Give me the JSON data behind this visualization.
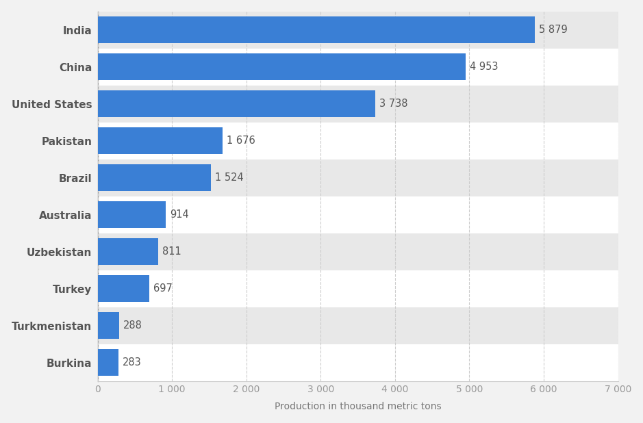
{
  "countries": [
    "Burkina",
    "Turkmenistan",
    "Turkey",
    "Uzbekistan",
    "Australia",
    "Brazil",
    "Pakistan",
    "United States",
    "China",
    "India"
  ],
  "values": [
    283,
    288,
    697,
    811,
    914,
    1524,
    1676,
    3738,
    4953,
    5879
  ],
  "labels": [
    "283",
    "288",
    "697",
    "811",
    "914",
    "1 524",
    "1 676",
    "3 738",
    "4 953",
    "5 879"
  ],
  "bar_color": "#3a7fd5",
  "background_color": "#f2f2f2",
  "plot_bg_color": "#ffffff",
  "row_alt_color": "#e8e8e8",
  "xlabel": "Production in thousand metric tons",
  "xlim": [
    0,
    7000
  ],
  "xticks": [
    0,
    1000,
    2000,
    3000,
    4000,
    5000,
    6000,
    7000
  ],
  "xtick_labels": [
    "0",
    "1 000",
    "2 000",
    "3 000",
    "4 000",
    "5 000",
    "6 000",
    "7 000"
  ],
  "label_color": "#555555",
  "tick_color": "#999999",
  "xlabel_color": "#777777",
  "bar_height": 0.72,
  "label_fontsize": 10.5,
  "tick_fontsize": 10,
  "xlabel_fontsize": 10,
  "ylabel_fontsize": 11
}
